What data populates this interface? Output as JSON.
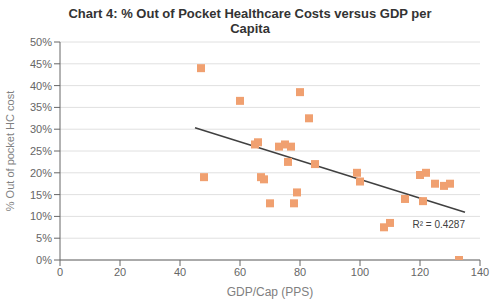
{
  "chart_data": {
    "type": "scatter",
    "title": "Chart 4: % Out of Pocket Healthcare Costs versus GDP per\nCapita",
    "x_label": "GDP/Cap (PPS)",
    "y_label": "% Out of pocket HC cost",
    "x": [
      47,
      48,
      60,
      65,
      66,
      67,
      68,
      70,
      73,
      75,
      76,
      77,
      78,
      79,
      80,
      83,
      85,
      99,
      100,
      108,
      110,
      115,
      120,
      121,
      122,
      125,
      128,
      130,
      133
    ],
    "values": [
      0.44,
      0.19,
      0.365,
      0.265,
      0.27,
      0.19,
      0.185,
      0.13,
      0.26,
      0.265,
      0.225,
      0.26,
      0.13,
      0.155,
      0.385,
      0.325,
      0.22,
      0.2,
      0.18,
      0.075,
      0.085,
      0.14,
      0.195,
      0.135,
      0.2,
      0.175,
      0.17,
      0.175,
      0.0
    ],
    "color": "#F0A070",
    "marker": "square",
    "trendline": {
      "x": [
        45,
        135
      ],
      "values": [
        0.3032,
        0.1096
      ],
      "color": "#404040"
    },
    "annotation": "R² = 0.4287",
    "xlim": [
      0,
      140
    ],
    "ylim": [
      0,
      0.5
    ],
    "xticks": [
      0,
      20,
      40,
      60,
      80,
      100,
      120,
      140
    ],
    "yticks": [
      {
        "value": 0.0,
        "label": "0%"
      },
      {
        "value": 0.05,
        "label": "5%"
      },
      {
        "value": 0.1,
        "label": "10%"
      },
      {
        "value": 0.15,
        "label": "15%"
      },
      {
        "value": 0.2,
        "label": "20%"
      },
      {
        "value": 0.25,
        "label": "25%"
      },
      {
        "value": 0.3,
        "label": "30%"
      },
      {
        "value": 0.35,
        "label": "35%"
      },
      {
        "value": 0.4,
        "label": "40%"
      },
      {
        "value": 0.45,
        "label": "45%"
      },
      {
        "value": 0.5,
        "label": "50%"
      }
    ],
    "grid": "y"
  }
}
